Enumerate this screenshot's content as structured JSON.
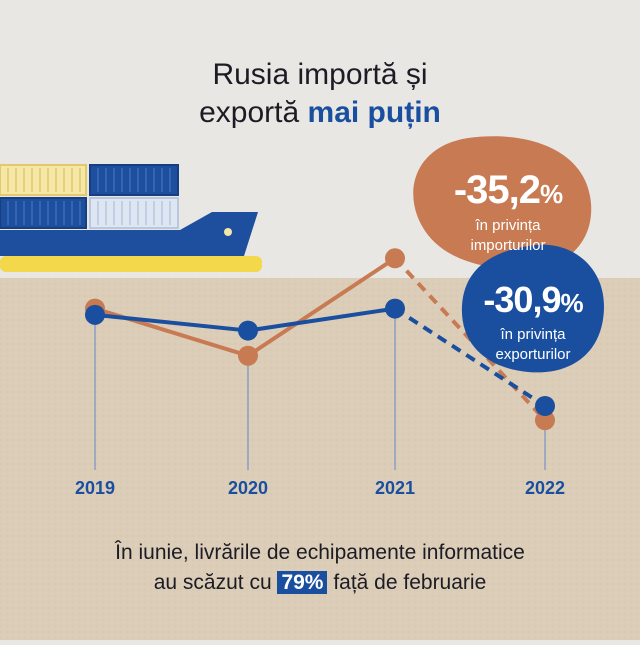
{
  "title": {
    "line1": "Rusia importă și",
    "line2_prefix": "exportă ",
    "line2_highlight": "mai puțin"
  },
  "callouts": {
    "imports": {
      "value": "-35,2",
      "unit": "%",
      "line1": "în privința",
      "line2": "importurilor"
    },
    "exports": {
      "value": "-30,9",
      "unit": "%",
      "line1": "în privința",
      "line2": "exporturilor"
    }
  },
  "footer": {
    "line1": "În iunie, livrările de echipamente informatice",
    "line2_prefix": "au scăzut cu ",
    "line2_highlight": "79%",
    "line2_suffix": " față de februarie"
  },
  "colors": {
    "imports": "#c87a52",
    "exports": "#1a4fa0",
    "ground": "#dccdb8",
    "sky": "#e9e7e4"
  },
  "chart_data": {
    "type": "line",
    "x": [
      "2019",
      "2020",
      "2021",
      "2022"
    ],
    "series": [
      {
        "key": "imports",
        "values": [
          100,
          85,
          116,
          64.5
        ],
        "projected_from_index": 2
      },
      {
        "key": "exports",
        "values": [
          98,
          93,
          100,
          69
        ],
        "projected_from_index": 2
      }
    ],
    "ylim": [
      55,
      125
    ],
    "grid": false,
    "legend": "none"
  }
}
